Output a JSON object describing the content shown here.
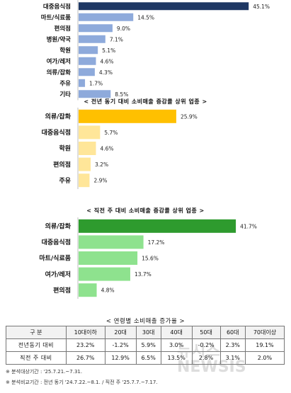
{
  "chart_data": [
    {
      "type": "bar",
      "orientation": "horizontal",
      "title": "",
      "categories": [
        "대중음식점",
        "마트/식료품",
        "편의점",
        "병원/약국",
        "학원",
        "여가/레저",
        "의류/잡화",
        "주유",
        "기타"
      ],
      "values": [
        45.1,
        14.5,
        9.0,
        7.1,
        5.1,
        4.6,
        4.3,
        1.7,
        8.5
      ],
      "labels": [
        "45.1%",
        "14.5%",
        "9.0%",
        "7.1%",
        "5.1%",
        "4.6%",
        "4.3%",
        "1.7%",
        "8.5%"
      ],
      "colors": [
        "#1f3864",
        "#8eaadb",
        "#8eaadb",
        "#8eaadb",
        "#8eaadb",
        "#8eaadb",
        "#8eaadb",
        "#8eaadb",
        "#8eaadb"
      ],
      "xlim": [
        0,
        46
      ]
    },
    {
      "type": "bar",
      "orientation": "horizontal",
      "title": "< 전년 동기 대비 소비매출 증감률 상위 업종 >",
      "categories": [
        "의류/잡화",
        "대중음식점",
        "학원",
        "편의점",
        "주유"
      ],
      "values": [
        25.9,
        5.7,
        4.6,
        3.2,
        2.9
      ],
      "labels": [
        "25.9%",
        "5.7%",
        "4.6%",
        "3.2%",
        "2.9%"
      ],
      "colors": [
        "#ffc000",
        "#ffe699",
        "#ffe699",
        "#ffe699",
        "#ffe699"
      ],
      "xlim": [
        0,
        46
      ]
    },
    {
      "type": "bar",
      "orientation": "horizontal",
      "title": "< 직전 주 대비 소비매출 증감률 상위 업종 >",
      "categories": [
        "의류/잡화",
        "대중음식점",
        "마트/식료품",
        "여가/레저",
        "편의점"
      ],
      "values": [
        41.7,
        17.2,
        15.6,
        13.7,
        4.8
      ],
      "labels": [
        "41.7%",
        "17.2%",
        "15.6%",
        "13.7%",
        "4.8%"
      ],
      "colors": [
        "#2e9b2e",
        "#8ee28e",
        "#8ee28e",
        "#8ee28e",
        "#8ee28e"
      ],
      "xlim": [
        0,
        46
      ]
    },
    {
      "type": "table",
      "title": "< 연령별 소비매출 증가율 >",
      "columns": [
        "구 분",
        "10대이하",
        "20대",
        "30대",
        "40대",
        "50대",
        "60대",
        "70대이상"
      ],
      "rows": [
        {
          "label": "전년동기 대비",
          "values": [
            "23.2%",
            "-1.2%",
            "5.9%",
            "3.0%",
            "-0.2%",
            "2.3%",
            "19.1%"
          ]
        },
        {
          "label": "직전 주 대비",
          "values": [
            "26.7%",
            "12.9%",
            "6.5%",
            "13.5%",
            "2.8%",
            "3.1%",
            "2.0%"
          ]
        }
      ]
    }
  ],
  "notes": [
    "※ 분석대상기간 : '25.7.21.~7.31.",
    "※ 분석비교기간 : 전년 동기 '24.7.22.~8.1. / 직전 주 '25.7.7.~7.17."
  ],
  "watermark": "뉴시스 NEWSIS"
}
